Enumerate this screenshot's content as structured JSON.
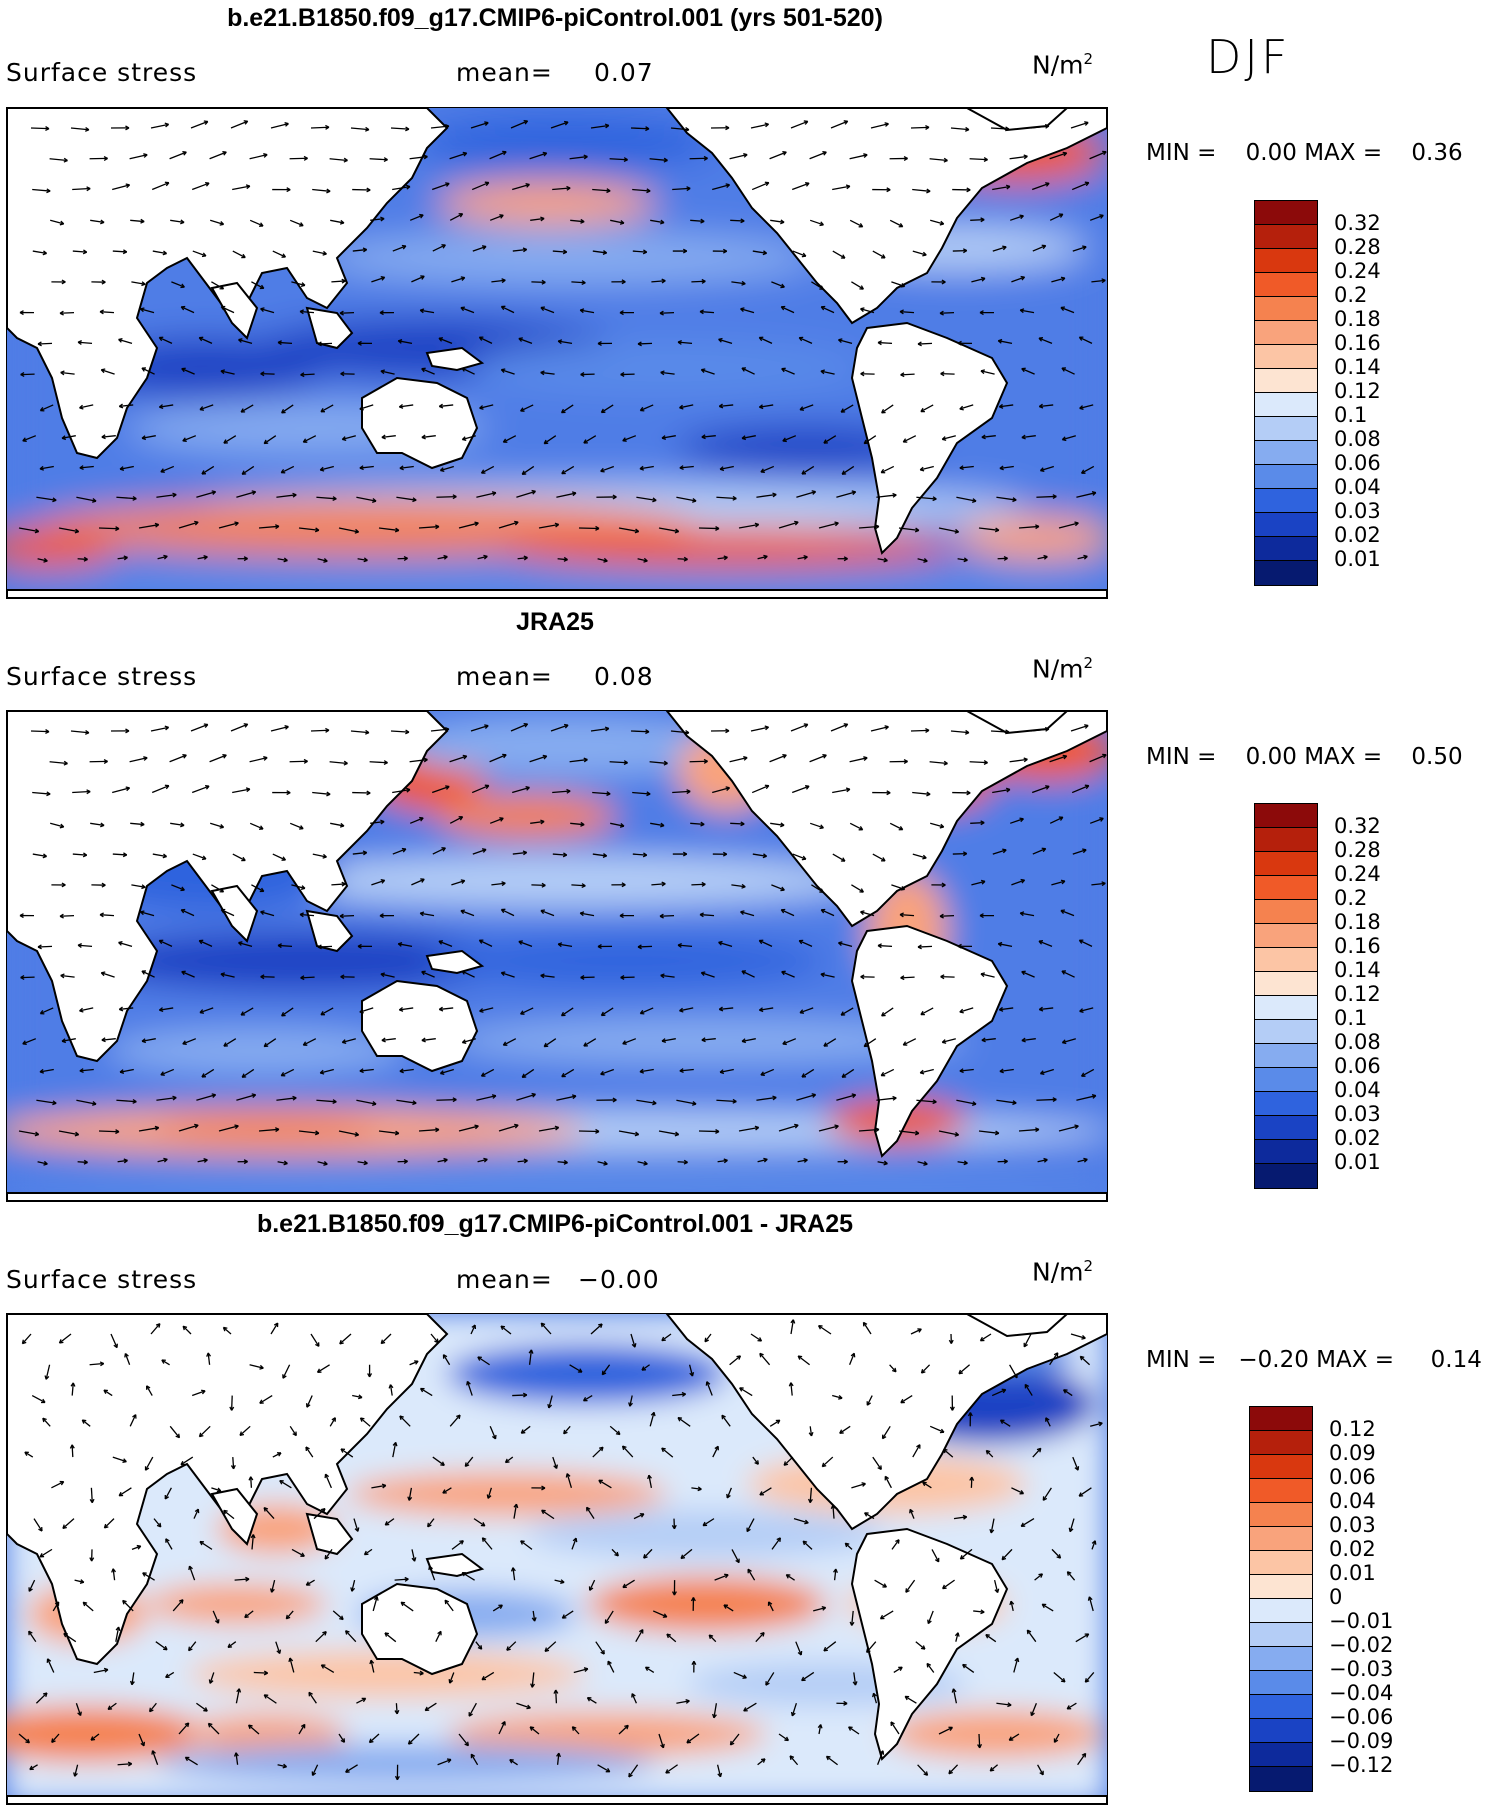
{
  "season": "DJF",
  "colors": {
    "land": "#ffffff",
    "coast": "#000000",
    "ocean_base": "#4f7de6"
  },
  "panels": [
    {
      "title": "b.e21.B1850.f09_g17.CMIP6-piControl.001 (yrs 501-520)",
      "variable": "Surface stress",
      "mean_label": "mean=",
      "mean_value": "0.07",
      "unit": "N/m",
      "unit_sup": "2",
      "min_label": "MIN =",
      "min_value": "0.00",
      "max_label": "MAX =",
      "max_value": "0.36",
      "legend": {
        "labels": [
          "0.32",
          "0.28",
          "0.24",
          "0.2",
          "0.18",
          "0.16",
          "0.14",
          "0.12",
          "0.1",
          "0.08",
          "0.06",
          "0.04",
          "0.03",
          "0.02",
          "0.01"
        ],
        "colors": [
          "#8c0a0a",
          "#b5200c",
          "#d9380f",
          "#f05a28",
          "#f5824f",
          "#f9a37c",
          "#fcc5a5",
          "#fde4d2",
          "#dbe9fb",
          "#b4cdf6",
          "#86acf0",
          "#5a8be9",
          "#2f63de",
          "#1a43c4",
          "#0d2a9c",
          "#061a70"
        ]
      }
    },
    {
      "title": "JRA25",
      "variable": "Surface stress",
      "mean_label": "mean=",
      "mean_value": "0.08",
      "unit": "N/m",
      "unit_sup": "2",
      "min_label": "MIN =",
      "min_value": "0.00",
      "max_label": "MAX =",
      "max_value": "0.50",
      "legend": {
        "labels": [
          "0.32",
          "0.28",
          "0.24",
          "0.2",
          "0.18",
          "0.16",
          "0.14",
          "0.12",
          "0.1",
          "0.08",
          "0.06",
          "0.04",
          "0.03",
          "0.02",
          "0.01"
        ],
        "colors": [
          "#8c0a0a",
          "#b5200c",
          "#d9380f",
          "#f05a28",
          "#f5824f",
          "#f9a37c",
          "#fcc5a5",
          "#fde4d2",
          "#dbe9fb",
          "#b4cdf6",
          "#86acf0",
          "#5a8be9",
          "#2f63de",
          "#1a43c4",
          "#0d2a9c",
          "#061a70"
        ]
      }
    },
    {
      "title": "b.e21.B1850.f09_g17.CMIP6-piControl.001 - JRA25",
      "variable": "Surface stress",
      "mean_label": "mean=",
      "mean_value": "−0.00",
      "unit": "N/m",
      "unit_sup": "2",
      "min_label": "MIN =",
      "min_value": "−0.20",
      "max_label": "MAX =",
      "max_value": "0.14",
      "legend": {
        "labels": [
          "0.12",
          "0.09",
          "0.06",
          "0.04",
          "0.03",
          "0.02",
          "0.01",
          "0",
          "−0.01",
          "−0.02",
          "−0.03",
          "−0.04",
          "−0.06",
          "−0.09",
          "−0.12"
        ],
        "colors": [
          "#8c0a0a",
          "#b5200c",
          "#d9380f",
          "#f05a28",
          "#f5824f",
          "#f9a37c",
          "#fcc5a5",
          "#fde4d2",
          "#dbe9fb",
          "#b4cdf6",
          "#86acf0",
          "#5a8be9",
          "#2f63de",
          "#1a43c4",
          "#0d2a9c",
          "#061a70"
        ]
      }
    }
  ]
}
